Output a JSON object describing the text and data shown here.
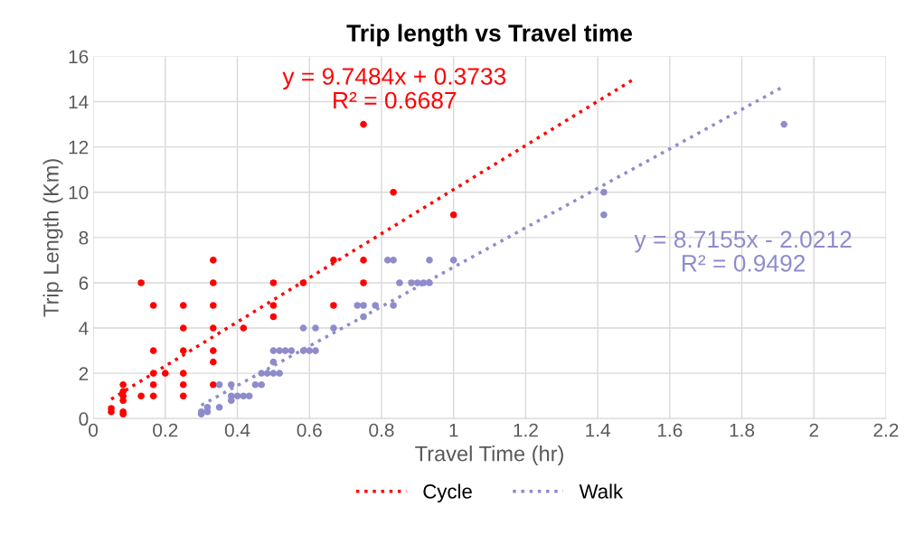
{
  "chart_data": {
    "type": "scatter",
    "title": "Trip length vs Travel time",
    "xlabel": "Travel Time (hr)",
    "ylabel": "Trip Length (Km)",
    "xlim": [
      0,
      2.2
    ],
    "xticks": [
      0,
      0.2,
      0.4,
      0.6,
      0.8,
      1,
      1.2,
      1.4,
      1.6,
      1.8,
      2,
      2.2
    ],
    "ylim": [
      0,
      16
    ],
    "yticks": [
      0,
      2,
      4,
      6,
      8,
      10,
      12,
      14,
      16
    ],
    "grid": true,
    "legend": "bottom",
    "marker": "circle",
    "series": [
      {
        "color": "#ff0000",
        "x": [
          0.05,
          0.05,
          0.083,
          0.083,
          0.083,
          0.083,
          0.083,
          0.083,
          0.133,
          0.133,
          0.167,
          0.167,
          0.167,
          0.167,
          0.167,
          0.2,
          0.25,
          0.25,
          0.25,
          0.25,
          0.25,
          0.25,
          0.333,
          0.333,
          0.333,
          0.333,
          0.333,
          0.333,
          0.333,
          0.417,
          0.5,
          0.5,
          0.5,
          0.583,
          0.667,
          0.667,
          0.75,
          0.75,
          0.75,
          0.833,
          1.0
        ],
        "values": [
          0.3,
          0.45,
          0.2,
          0.3,
          0.8,
          1,
          1.2,
          1.5,
          1,
          6,
          1,
          1.5,
          2,
          3,
          5,
          2,
          1,
          1.5,
          2,
          3,
          4,
          5,
          1.5,
          2.5,
          3,
          4,
          5,
          6,
          7,
          4,
          4.5,
          5,
          6,
          6,
          5,
          7,
          6,
          7,
          13,
          10,
          9
        ]
      },
      {
        "color": "#8e8cca",
        "x": [
          0.3,
          0.3,
          0.317,
          0.317,
          0.35,
          0.35,
          0.383,
          0.383,
          0.383,
          0.4,
          0.417,
          0.433,
          0.45,
          0.467,
          0.467,
          0.483,
          0.5,
          0.5,
          0.5,
          0.517,
          0.517,
          0.533,
          0.55,
          0.583,
          0.583,
          0.6,
          0.617,
          0.617,
          0.667,
          0.733,
          0.75,
          0.75,
          0.783,
          0.817,
          0.833,
          0.833,
          0.85,
          0.883,
          0.9,
          0.917,
          0.933,
          0.933,
          1.0,
          1.417,
          1.417,
          1.917
        ],
        "values": [
          0.2,
          0.3,
          0.3,
          0.5,
          0.5,
          1.5,
          0.8,
          1,
          1.5,
          1,
          1,
          1,
          1.5,
          1.5,
          2,
          2,
          2,
          2.5,
          3,
          2,
          3,
          3,
          3,
          3,
          4,
          3,
          3,
          4,
          4,
          5,
          4.5,
          5,
          5,
          7,
          5,
          7,
          6,
          6,
          6,
          6,
          6,
          7,
          7,
          9,
          10,
          13
        ]
      },
      {
        "type": "line",
        "name": "Cycle",
        "color": "#ff0000",
        "line_style": "dotted",
        "marker": "none",
        "x": [
          0.05,
          1.5
        ],
        "values": [
          0.86,
          14.99
        ]
      },
      {
        "type": "line",
        "name": "Walk",
        "color": "#8e8cca",
        "line_style": "dotted",
        "marker": "none",
        "x": [
          0.3,
          1.917
        ],
        "values": [
          0.59,
          14.68
        ]
      }
    ],
    "annotations": [
      "y = 9.7484x + 0.3733\nR² = 0.6687",
      "y = 8.7155x - 2.0212\nR² = 0.9492"
    ]
  }
}
